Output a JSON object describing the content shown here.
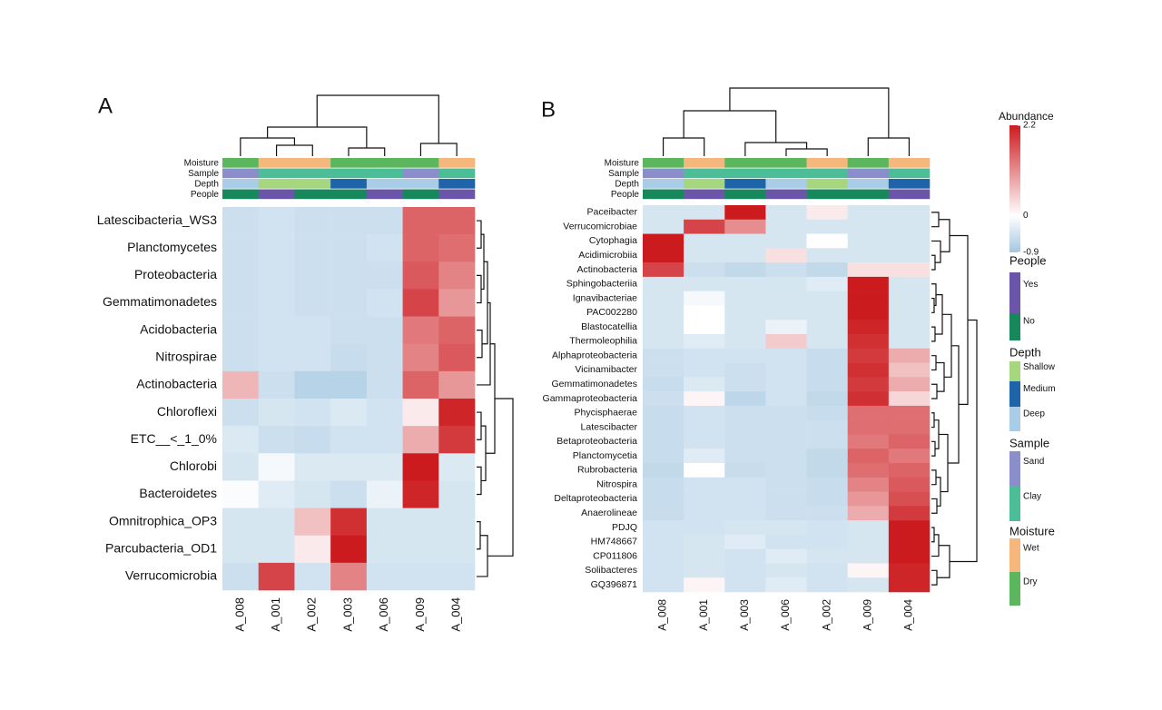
{
  "chart_data": [
    {
      "type": "heatmap",
      "panel_label": "A",
      "columns": [
        "A_008",
        "A_001",
        "A_002",
        "A_003",
        "A_006",
        "A_009",
        "A_004"
      ],
      "rows": [
        "Latescibacteria_WS3",
        "Planctomycetes",
        "Proteobacteria",
        "Gemmatimonadetes",
        "Acidobacteria",
        "Nitrospirae",
        "Actinobacteria",
        "Chloroflexi",
        "ETC__<_1_0%",
        "Chlorobi",
        "Bacteroidetes",
        "Omnitrophica_OP3",
        "Parcubacteria_OD1",
        "Verrucomicrobia"
      ],
      "annotations": [
        {
          "name": "Moisture",
          "values": [
            "Dry",
            "Wet",
            "Wet",
            "Dry",
            "Dry",
            "Dry",
            "Wet"
          ]
        },
        {
          "name": "Sample",
          "values": [
            "Sand",
            "Clay",
            "Clay",
            "Clay",
            "Clay",
            "Sand",
            "Clay"
          ]
        },
        {
          "name": "Depth",
          "values": [
            "Deep",
            "Shallow",
            "Shallow",
            "Medium",
            "Deep",
            "Deep",
            "Medium"
          ]
        },
        {
          "name": "People",
          "values": [
            "No",
            "Yes",
            "No",
            "No",
            "Yes",
            "No",
            "Yes"
          ]
        }
      ],
      "values": [
        [
          -0.5,
          -0.45,
          -0.5,
          -0.5,
          -0.5,
          1.5,
          1.5
        ],
        [
          -0.5,
          -0.45,
          -0.5,
          -0.5,
          -0.45,
          1.5,
          1.4
        ],
        [
          -0.5,
          -0.45,
          -0.5,
          -0.5,
          -0.5,
          1.6,
          1.2
        ],
        [
          -0.5,
          -0.45,
          -0.5,
          -0.5,
          -0.45,
          1.8,
          1.0
        ],
        [
          -0.5,
          -0.45,
          -0.45,
          -0.5,
          -0.5,
          1.3,
          1.5
        ],
        [
          -0.5,
          -0.45,
          -0.45,
          -0.55,
          -0.5,
          1.2,
          1.6
        ],
        [
          0.7,
          -0.5,
          -0.7,
          -0.7,
          -0.5,
          1.5,
          1.0
        ],
        [
          -0.5,
          -0.4,
          -0.45,
          -0.35,
          -0.45,
          0.2,
          2.1
        ],
        [
          -0.35,
          -0.5,
          -0.55,
          -0.45,
          -0.45,
          0.8,
          1.9
        ],
        [
          -0.4,
          -0.1,
          -0.35,
          -0.35,
          -0.35,
          2.2,
          -0.35
        ],
        [
          -0.05,
          -0.3,
          -0.4,
          -0.5,
          -0.2,
          2.1,
          -0.4
        ],
        [
          -0.4,
          -0.4,
          0.6,
          2.0,
          -0.4,
          -0.4,
          -0.4
        ],
        [
          -0.4,
          -0.4,
          0.2,
          2.2,
          -0.4,
          -0.4,
          -0.4
        ],
        [
          -0.5,
          1.8,
          -0.45,
          1.2,
          -0.45,
          -0.45,
          -0.45
        ]
      ]
    },
    {
      "type": "heatmap",
      "panel_label": "B",
      "columns": [
        "A_008",
        "A_001",
        "A_003",
        "A_006",
        "A_002",
        "A_009",
        "A_004"
      ],
      "rows": [
        "Paceibacter",
        "Verrucomicrobiae",
        "Cytophagia",
        "Acidimicrobiia",
        "Actinobacteria",
        "Sphingobacteriia",
        "Ignavibacteriae",
        "PAC002280",
        "Blastocatellia",
        "Thermoleophilia",
        "Alphaproteobacteria",
        "Vicinamibacter",
        "Gemmatimonadetes",
        "Gammaproteobacteria",
        "Phycisphaerae",
        "Latescibacter",
        "Betaproteobacteria",
        "Planctomycetia",
        "Rubrobacteria",
        "Nitrospira",
        "Deltaproteobacteria",
        "Anaerolineae",
        "PDJQ",
        "HM748667",
        "CP011806",
        "Solibacteres",
        "GQ396871"
      ],
      "annotations": [
        {
          "name": "Moisture",
          "values": [
            "Dry",
            "Wet",
            "Dry",
            "Dry",
            "Wet",
            "Dry",
            "Wet"
          ]
        },
        {
          "name": "Sample",
          "values": [
            "Sand",
            "Clay",
            "Clay",
            "Clay",
            "Clay",
            "Sand",
            "Clay"
          ]
        },
        {
          "name": "Depth",
          "values": [
            "Deep",
            "Shallow",
            "Medium",
            "Deep",
            "Shallow",
            "Deep",
            "Medium"
          ]
        },
        {
          "name": "People",
          "values": [
            "No",
            "Yes",
            "No",
            "Yes",
            "No",
            "No",
            "Yes"
          ]
        }
      ],
      "values": [
        [
          -0.4,
          -0.4,
          2.2,
          -0.4,
          0.2,
          -0.4,
          -0.4
        ],
        [
          -0.4,
          1.8,
          1.1,
          -0.4,
          -0.4,
          -0.4,
          -0.4
        ],
        [
          2.2,
          -0.4,
          -0.4,
          -0.4,
          0.0,
          -0.4,
          -0.4
        ],
        [
          2.2,
          -0.4,
          -0.4,
          0.3,
          -0.4,
          -0.4,
          -0.4
        ],
        [
          1.8,
          -0.5,
          -0.6,
          -0.5,
          -0.6,
          0.3,
          0.3
        ],
        [
          -0.4,
          -0.4,
          -0.4,
          -0.4,
          -0.3,
          2.2,
          -0.4
        ],
        [
          -0.4,
          -0.1,
          -0.4,
          -0.4,
          -0.4,
          2.2,
          -0.4
        ],
        [
          -0.4,
          0.0,
          -0.4,
          -0.4,
          -0.4,
          2.2,
          -0.4
        ],
        [
          -0.4,
          0.0,
          -0.4,
          -0.2,
          -0.4,
          2.1,
          -0.4
        ],
        [
          -0.4,
          -0.3,
          -0.4,
          0.5,
          -0.4,
          2.0,
          -0.4
        ],
        [
          -0.5,
          -0.45,
          -0.45,
          -0.45,
          -0.55,
          1.9,
          0.8
        ],
        [
          -0.5,
          -0.45,
          -0.5,
          -0.45,
          -0.55,
          2.0,
          0.6
        ],
        [
          -0.55,
          -0.35,
          -0.5,
          -0.45,
          -0.55,
          1.9,
          0.8
        ],
        [
          -0.5,
          0.1,
          -0.65,
          -0.45,
          -0.6,
          2.0,
          0.4
        ],
        [
          -0.55,
          -0.45,
          -0.5,
          -0.5,
          -0.55,
          1.4,
          1.4
        ],
        [
          -0.55,
          -0.45,
          -0.5,
          -0.5,
          -0.5,
          1.4,
          1.4
        ],
        [
          -0.55,
          -0.45,
          -0.5,
          -0.5,
          -0.5,
          1.3,
          1.5
        ],
        [
          -0.55,
          -0.3,
          -0.5,
          -0.5,
          -0.6,
          1.5,
          1.3
        ],
        [
          -0.6,
          0.0,
          -0.55,
          -0.5,
          -0.6,
          1.4,
          1.5
        ],
        [
          -0.55,
          -0.45,
          -0.45,
          -0.5,
          -0.55,
          1.2,
          1.6
        ],
        [
          -0.55,
          -0.45,
          -0.45,
          -0.5,
          -0.55,
          1.0,
          1.7
        ],
        [
          -0.55,
          -0.45,
          -0.45,
          -0.5,
          -0.5,
          0.8,
          1.9
        ],
        [
          -0.45,
          -0.45,
          -0.4,
          -0.4,
          -0.45,
          -0.4,
          2.2
        ],
        [
          -0.45,
          -0.4,
          -0.3,
          -0.45,
          -0.45,
          -0.4,
          2.2
        ],
        [
          -0.45,
          -0.4,
          -0.45,
          -0.3,
          -0.4,
          -0.4,
          2.2
        ],
        [
          -0.45,
          -0.4,
          -0.45,
          -0.4,
          -0.45,
          0.1,
          2.1
        ],
        [
          -0.45,
          0.1,
          -0.45,
          -0.3,
          -0.45,
          -0.4,
          2.1
        ]
      ]
    }
  ],
  "legend": {
    "title": "Abundance",
    "lim": [
      -0.9,
      2.2
    ],
    "ticks": [
      2.2,
      0,
      -0.9
    ],
    "colors": [
      "#a3c6e0",
      "#ffffff",
      "#cc1b1f"
    ],
    "groups": [
      {
        "name": "People",
        "levels": [
          {
            "label": "Yes",
            "color": "#6a55a8"
          },
          {
            "label": "No",
            "color": "#17885c"
          }
        ]
      },
      {
        "name": "Depth",
        "levels": [
          {
            "label": "Shallow",
            "color": "#a6d67e"
          },
          {
            "label": "Medium",
            "color": "#1f63a8"
          },
          {
            "label": "Deep",
            "color": "#a9cde6"
          }
        ]
      },
      {
        "name": "Sample",
        "levels": [
          {
            "label": "Sand",
            "color": "#8a8fcc"
          },
          {
            "label": "Clay",
            "color": "#4bbd97"
          }
        ]
      },
      {
        "name": "Moisture",
        "levels": [
          {
            "label": "Wet",
            "color": "#f5b77b"
          },
          {
            "label": "Dry",
            "color": "#5bb65e"
          }
        ]
      }
    ]
  }
}
